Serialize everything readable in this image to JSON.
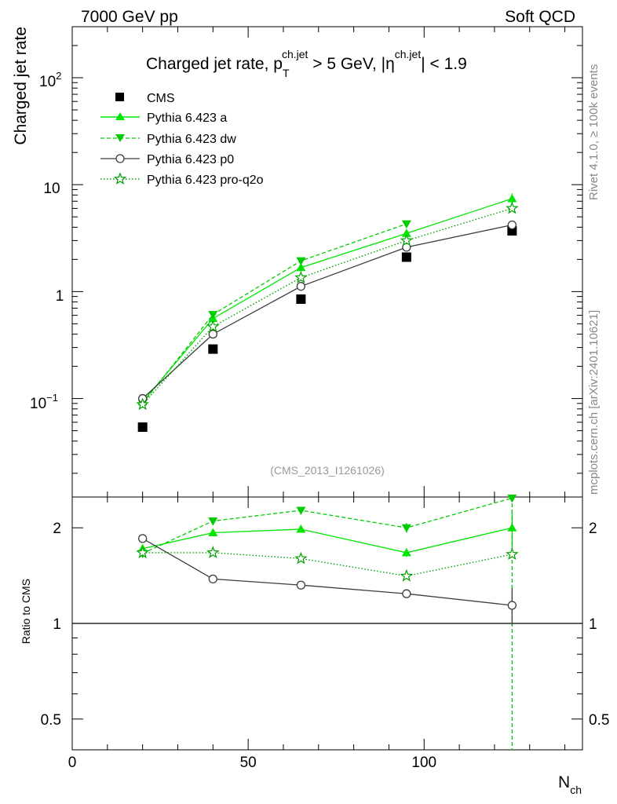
{
  "header": {
    "left": "7000 GeV pp",
    "right": "Soft QCD",
    "analysis_id": "(CMS_2013_I1261026)",
    "rivet_label": "Rivet 4.1.0, ≥ 100k events",
    "mcplots_label": "mcplots.cern.ch [arXiv:2401.10621]"
  },
  "colors": {
    "cms": "#000000",
    "pythia_a": "#00e600",
    "pythia_dw": "#00cc00",
    "pythia_p0": "#3c3c3c",
    "pythia_proq2o": "#00a000"
  },
  "chart_data": [
    {
      "type": "line",
      "panel": "main",
      "title": {
        "prefix": "Charged jet rate, p",
        "pt_sup": "ch.jet",
        "pt_sub": "T",
        "mid": " > 5 GeV,  |η",
        "eta_sup": "ch.jet",
        "suffix": "| < 1.9"
      },
      "ylabel": "Charged jet rate",
      "yscale": "log",
      "ylim": [
        0.012,
        300
      ],
      "xlim": [
        0,
        145
      ],
      "ytick_labels": {
        "exp_m1_base": "10",
        "exp_m1": "−1",
        "one": "1",
        "ten": "10",
        "exp_2_base": "10",
        "exp_2": "2"
      },
      "series": [
        {
          "name": "CMS",
          "key": "cms",
          "marker": "square",
          "line": "none",
          "x": [
            20,
            40,
            65,
            95,
            125
          ],
          "y": [
            0.054,
            0.29,
            0.85,
            2.1,
            3.7
          ]
        },
        {
          "name": "Pythia 6.423 a",
          "key": "pythia_a",
          "marker": "triangle-up",
          "line": "solid",
          "x": [
            20,
            40,
            65,
            95,
            125
          ],
          "y": [
            0.093,
            0.56,
            1.68,
            3.5,
            7.4
          ],
          "yerr": [
            0,
            0,
            0,
            0,
            0.9
          ]
        },
        {
          "name": "Pythia 6.423 dw",
          "key": "pythia_dw",
          "marker": "triangle-down",
          "line": "dashed",
          "x": [
            20,
            40,
            65,
            95
          ],
          "y": [
            0.09,
            0.61,
            1.94,
            4.3
          ]
        },
        {
          "name": "Pythia 6.423 p0",
          "key": "pythia_p0",
          "marker": "circle-open",
          "line": "solid",
          "x": [
            20,
            40,
            65,
            95,
            125
          ],
          "y": [
            0.1,
            0.4,
            1.12,
            2.6,
            4.2
          ],
          "yerr": [
            0,
            0,
            0,
            0,
            0.4
          ]
        },
        {
          "name": "Pythia 6.423 pro-q2o",
          "key": "pythia_proq2o",
          "marker": "star-open",
          "line": "dotted",
          "x": [
            20,
            40,
            65,
            95,
            125
          ],
          "y": [
            0.088,
            0.47,
            1.35,
            3.0,
            6.0
          ]
        }
      ]
    },
    {
      "type": "line",
      "panel": "ratio",
      "ylabel": "Ratio to CMS",
      "xlabel": "N",
      "xlabel_sub": "ch",
      "yscale": "log",
      "ylim": [
        0.4,
        2.5
      ],
      "xlim": [
        0,
        145
      ],
      "yticks": [
        0.5,
        1,
        2
      ],
      "ytick_labels": [
        "0.5",
        "1",
        "2"
      ],
      "xticks": [
        0,
        50,
        100
      ],
      "xtick_labels": [
        "0",
        "50",
        "100"
      ],
      "series": [
        {
          "name": "Pythia 6.423 a",
          "key": "pythia_a",
          "marker": "triangle-up",
          "line": "solid",
          "x": [
            20,
            40,
            65,
            95,
            125
          ],
          "y": [
            1.72,
            1.93,
            1.98,
            1.67,
            2.0
          ],
          "yerr": [
            0,
            0,
            0,
            0.05,
            0.28
          ]
        },
        {
          "name": "Pythia 6.423 dw",
          "key": "pythia_dw",
          "marker": "triangle-down",
          "line": "dashed",
          "x": [
            20,
            40,
            65,
            95,
            125
          ],
          "y": [
            1.66,
            2.1,
            2.27,
            2.0,
            2.48
          ],
          "yerr": [
            0,
            0,
            0,
            0.07,
            3.0
          ]
        },
        {
          "name": "Pythia 6.423 p0",
          "key": "pythia_p0",
          "marker": "circle-open",
          "line": "solid",
          "x": [
            20,
            40,
            65,
            95,
            125
          ],
          "y": [
            1.85,
            1.38,
            1.32,
            1.24,
            1.14
          ],
          "yerr": [
            0.04,
            0,
            0,
            0.03,
            0.15
          ]
        },
        {
          "name": "Pythia 6.423 pro-q2o",
          "key": "pythia_proq2o",
          "marker": "star-open",
          "line": "dotted",
          "x": [
            20,
            40,
            65,
            95,
            125
          ],
          "y": [
            1.67,
            1.67,
            1.6,
            1.41,
            1.65
          ]
        }
      ]
    }
  ]
}
